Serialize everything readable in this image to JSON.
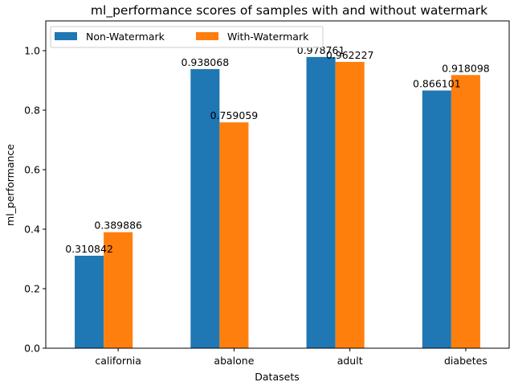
{
  "chart_data": {
    "type": "bar",
    "title": "ml_performance scores of samples with and without watermark",
    "xlabel": "Datasets",
    "ylabel": "ml_performance",
    "categories": [
      "california",
      "abalone",
      "adult",
      "diabetes"
    ],
    "series": [
      {
        "name": "Non-Watermark",
        "color": "#1f77b4",
        "values": [
          0.310842,
          0.938068,
          0.978761,
          0.866101
        ],
        "labels": [
          "0.310842",
          "0.938068",
          "0.978761",
          "0.866101"
        ]
      },
      {
        "name": "With-Watermark",
        "color": "#ff7f0e",
        "values": [
          0.389886,
          0.759059,
          0.962227,
          0.918098
        ],
        "labels": [
          "0.389886",
          "0.759059",
          "0.962227",
          "0.918098"
        ]
      }
    ],
    "ylim": [
      0,
      1.1
    ],
    "yticks": [
      0.0,
      0.2,
      0.4,
      0.6,
      0.8,
      1.0
    ],
    "ytick_labels": [
      "0.0",
      "0.2",
      "0.4",
      "0.6",
      "0.8",
      "1.0"
    ],
    "legend_position": "top-left",
    "grid": false
  }
}
